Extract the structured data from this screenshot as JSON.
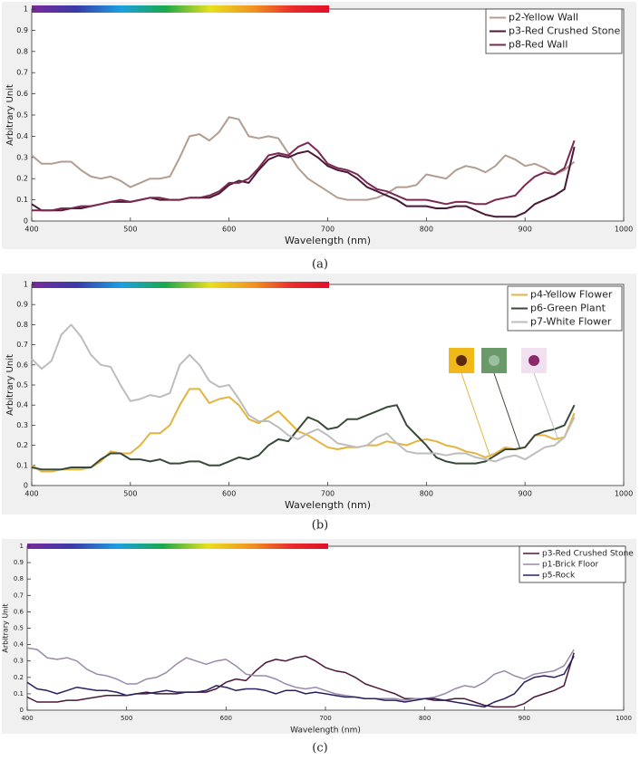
{
  "chart_data": [
    {
      "type": "line",
      "caption": "(a)",
      "xlabel": "Wavelength (nm)",
      "ylabel": "Arbitrary Unit",
      "xlim": [
        400,
        1000
      ],
      "ylim": [
        0,
        1
      ],
      "xticks": [
        400,
        500,
        600,
        700,
        800,
        900,
        1000
      ],
      "yticks": [
        0,
        0.1,
        0.2,
        0.3,
        0.4,
        0.5,
        0.6,
        0.7,
        0.8,
        0.9,
        1
      ],
      "legend": "upper right",
      "grid": false,
      "x": [
        400,
        410,
        420,
        430,
        440,
        450,
        460,
        470,
        480,
        490,
        500,
        510,
        520,
        530,
        540,
        550,
        560,
        570,
        580,
        590,
        600,
        610,
        620,
        630,
        640,
        650,
        660,
        670,
        680,
        690,
        700,
        710,
        720,
        730,
        740,
        750,
        760,
        770,
        780,
        790,
        800,
        810,
        820,
        830,
        840,
        850,
        860,
        870,
        880,
        890,
        900,
        910,
        920,
        930,
        940,
        950
      ],
      "series": [
        {
          "name": "p2-Yellow Wall",
          "color": "#b39d90",
          "values": [
            0.31,
            0.27,
            0.27,
            0.28,
            0.28,
            0.24,
            0.21,
            0.2,
            0.21,
            0.19,
            0.16,
            0.18,
            0.2,
            0.2,
            0.21,
            0.3,
            0.4,
            0.41,
            0.38,
            0.42,
            0.49,
            0.48,
            0.4,
            0.39,
            0.4,
            0.39,
            0.32,
            0.25,
            0.2,
            0.17,
            0.14,
            0.11,
            0.1,
            0.1,
            0.1,
            0.11,
            0.13,
            0.16,
            0.16,
            0.17,
            0.22,
            0.21,
            0.2,
            0.24,
            0.26,
            0.25,
            0.23,
            0.26,
            0.31,
            0.29,
            0.26,
            0.27,
            0.25,
            0.22,
            0.24,
            0.28
          ]
        },
        {
          "name": "p3-Red Crushed Stone",
          "color": "#4a1838",
          "values": [
            0.08,
            0.05,
            0.05,
            0.05,
            0.06,
            0.06,
            0.07,
            0.08,
            0.09,
            0.09,
            0.09,
            0.1,
            0.11,
            0.1,
            0.1,
            0.1,
            0.11,
            0.11,
            0.11,
            0.13,
            0.17,
            0.19,
            0.18,
            0.24,
            0.29,
            0.31,
            0.3,
            0.32,
            0.33,
            0.3,
            0.26,
            0.24,
            0.23,
            0.2,
            0.16,
            0.14,
            0.12,
            0.1,
            0.07,
            0.07,
            0.07,
            0.06,
            0.06,
            0.07,
            0.07,
            0.05,
            0.03,
            0.02,
            0.02,
            0.02,
            0.04,
            0.08,
            0.1,
            0.12,
            0.15,
            0.35
          ]
        },
        {
          "name": "p8-Red Wall",
          "color": "#7a2a52",
          "values": [
            0.05,
            0.05,
            0.05,
            0.06,
            0.06,
            0.07,
            0.07,
            0.08,
            0.09,
            0.1,
            0.09,
            0.1,
            0.11,
            0.11,
            0.1,
            0.1,
            0.11,
            0.11,
            0.12,
            0.14,
            0.18,
            0.18,
            0.2,
            0.25,
            0.31,
            0.32,
            0.31,
            0.35,
            0.37,
            0.33,
            0.27,
            0.25,
            0.24,
            0.22,
            0.18,
            0.15,
            0.14,
            0.12,
            0.1,
            0.1,
            0.1,
            0.09,
            0.08,
            0.09,
            0.09,
            0.08,
            0.08,
            0.1,
            0.11,
            0.12,
            0.17,
            0.21,
            0.23,
            0.22,
            0.25,
            0.38
          ]
        }
      ]
    },
    {
      "type": "line",
      "caption": "(b)",
      "xlabel": "Wavelength (nm)",
      "ylabel": "Arbitrary Unit",
      "xlim": [
        400,
        1000
      ],
      "ylim": [
        0,
        1
      ],
      "xticks": [
        400,
        500,
        600,
        700,
        800,
        900,
        1000
      ],
      "yticks": [
        0,
        0.1,
        0.2,
        0.3,
        0.4,
        0.5,
        0.6,
        0.7,
        0.8,
        0.9,
        1
      ],
      "legend": "upper right",
      "grid": false,
      "x": [
        400,
        410,
        420,
        430,
        440,
        450,
        460,
        470,
        480,
        490,
        500,
        510,
        520,
        530,
        540,
        550,
        560,
        570,
        580,
        590,
        600,
        610,
        620,
        630,
        640,
        650,
        660,
        670,
        680,
        690,
        700,
        710,
        720,
        730,
        740,
        750,
        760,
        770,
        780,
        790,
        800,
        810,
        820,
        830,
        840,
        850,
        860,
        870,
        880,
        890,
        900,
        910,
        920,
        930,
        940,
        950
      ],
      "series": [
        {
          "name": "p4-Yellow Flower",
          "color": "#e2b440",
          "values": [
            0.1,
            0.07,
            0.07,
            0.08,
            0.08,
            0.08,
            0.09,
            0.12,
            0.17,
            0.16,
            0.16,
            0.2,
            0.26,
            0.26,
            0.3,
            0.4,
            0.48,
            0.48,
            0.41,
            0.43,
            0.44,
            0.4,
            0.33,
            0.31,
            0.34,
            0.37,
            0.32,
            0.27,
            0.25,
            0.22,
            0.19,
            0.18,
            0.19,
            0.19,
            0.2,
            0.2,
            0.22,
            0.21,
            0.2,
            0.22,
            0.23,
            0.22,
            0.2,
            0.19,
            0.17,
            0.16,
            0.14,
            0.16,
            0.19,
            0.18,
            0.19,
            0.25,
            0.25,
            0.23,
            0.24,
            0.36
          ]
        },
        {
          "name": "p6-Green Plant",
          "color": "#3a4a3a",
          "values": [
            0.09,
            0.08,
            0.08,
            0.08,
            0.09,
            0.09,
            0.09,
            0.13,
            0.16,
            0.16,
            0.13,
            0.13,
            0.12,
            0.13,
            0.11,
            0.11,
            0.12,
            0.12,
            0.1,
            0.1,
            0.12,
            0.14,
            0.13,
            0.15,
            0.2,
            0.23,
            0.22,
            0.28,
            0.34,
            0.32,
            0.28,
            0.29,
            0.33,
            0.33,
            0.35,
            0.37,
            0.39,
            0.4,
            0.3,
            0.25,
            0.2,
            0.14,
            0.12,
            0.11,
            0.11,
            0.11,
            0.12,
            0.15,
            0.18,
            0.18,
            0.19,
            0.25,
            0.27,
            0.28,
            0.3,
            0.4
          ]
        },
        {
          "name": "p7-White Flower",
          "color": "#bdbdbd",
          "values": [
            0.63,
            0.58,
            0.62,
            0.75,
            0.8,
            0.74,
            0.65,
            0.6,
            0.59,
            0.5,
            0.42,
            0.43,
            0.45,
            0.44,
            0.46,
            0.6,
            0.65,
            0.6,
            0.52,
            0.49,
            0.5,
            0.43,
            0.35,
            0.32,
            0.32,
            0.29,
            0.25,
            0.23,
            0.26,
            0.28,
            0.25,
            0.21,
            0.2,
            0.19,
            0.2,
            0.24,
            0.26,
            0.21,
            0.17,
            0.16,
            0.16,
            0.16,
            0.15,
            0.16,
            0.16,
            0.14,
            0.13,
            0.12,
            0.14,
            0.15,
            0.13,
            0.16,
            0.19,
            0.2,
            0.24,
            0.34
          ]
        }
      ]
    },
    {
      "type": "line",
      "caption": "(c)",
      "xlabel": "Wavelength (nm)",
      "ylabel": "Arbitrary Unit",
      "xlim": [
        400,
        1000
      ],
      "ylim": [
        0,
        1
      ],
      "xticks": [
        400,
        500,
        600,
        700,
        800,
        900,
        1000
      ],
      "yticks": [
        0,
        0.1,
        0.2,
        0.3,
        0.4,
        0.5,
        0.6,
        0.7,
        0.8,
        0.9,
        1
      ],
      "legend": "upper right",
      "grid": false,
      "x": [
        400,
        410,
        420,
        430,
        440,
        450,
        460,
        470,
        480,
        490,
        500,
        510,
        520,
        530,
        540,
        550,
        560,
        570,
        580,
        590,
        600,
        610,
        620,
        630,
        640,
        650,
        660,
        670,
        680,
        690,
        700,
        710,
        720,
        730,
        740,
        750,
        760,
        770,
        780,
        790,
        800,
        810,
        820,
        830,
        840,
        850,
        860,
        870,
        880,
        890,
        900,
        910,
        920,
        930,
        940,
        950
      ],
      "series": [
        {
          "name": "p3-Red Crushed Stone",
          "color": "#4a1838",
          "values": [
            0.08,
            0.05,
            0.05,
            0.05,
            0.06,
            0.06,
            0.07,
            0.08,
            0.09,
            0.09,
            0.09,
            0.1,
            0.11,
            0.1,
            0.1,
            0.1,
            0.11,
            0.11,
            0.11,
            0.13,
            0.17,
            0.19,
            0.18,
            0.24,
            0.29,
            0.31,
            0.3,
            0.32,
            0.33,
            0.3,
            0.26,
            0.24,
            0.23,
            0.2,
            0.16,
            0.14,
            0.12,
            0.1,
            0.07,
            0.07,
            0.07,
            0.06,
            0.06,
            0.07,
            0.07,
            0.05,
            0.03,
            0.02,
            0.02,
            0.02,
            0.04,
            0.08,
            0.1,
            0.12,
            0.15,
            0.35
          ]
        },
        {
          "name": "p1-Brick Floor",
          "color": "#9a8aaa",
          "values": [
            0.38,
            0.37,
            0.32,
            0.31,
            0.32,
            0.3,
            0.25,
            0.22,
            0.21,
            0.19,
            0.16,
            0.16,
            0.19,
            0.2,
            0.23,
            0.28,
            0.32,
            0.3,
            0.28,
            0.3,
            0.31,
            0.27,
            0.22,
            0.21,
            0.21,
            0.19,
            0.16,
            0.14,
            0.13,
            0.14,
            0.12,
            0.1,
            0.09,
            0.08,
            0.07,
            0.07,
            0.07,
            0.07,
            0.06,
            0.07,
            0.07,
            0.08,
            0.1,
            0.13,
            0.15,
            0.14,
            0.17,
            0.22,
            0.24,
            0.21,
            0.19,
            0.22,
            0.23,
            0.24,
            0.27,
            0.37
          ]
        },
        {
          "name": "p5-Rock",
          "color": "#2a2060",
          "values": [
            0.17,
            0.13,
            0.12,
            0.1,
            0.12,
            0.14,
            0.13,
            0.12,
            0.12,
            0.11,
            0.09,
            0.1,
            0.1,
            0.11,
            0.12,
            0.11,
            0.11,
            0.11,
            0.12,
            0.15,
            0.14,
            0.12,
            0.13,
            0.13,
            0.12,
            0.1,
            0.12,
            0.12,
            0.1,
            0.11,
            0.1,
            0.09,
            0.08,
            0.08,
            0.07,
            0.07,
            0.06,
            0.06,
            0.05,
            0.06,
            0.07,
            0.07,
            0.06,
            0.05,
            0.04,
            0.03,
            0.02,
            0.05,
            0.07,
            0.1,
            0.17,
            0.2,
            0.21,
            0.2,
            0.22,
            0.33
          ]
        }
      ]
    }
  ]
}
